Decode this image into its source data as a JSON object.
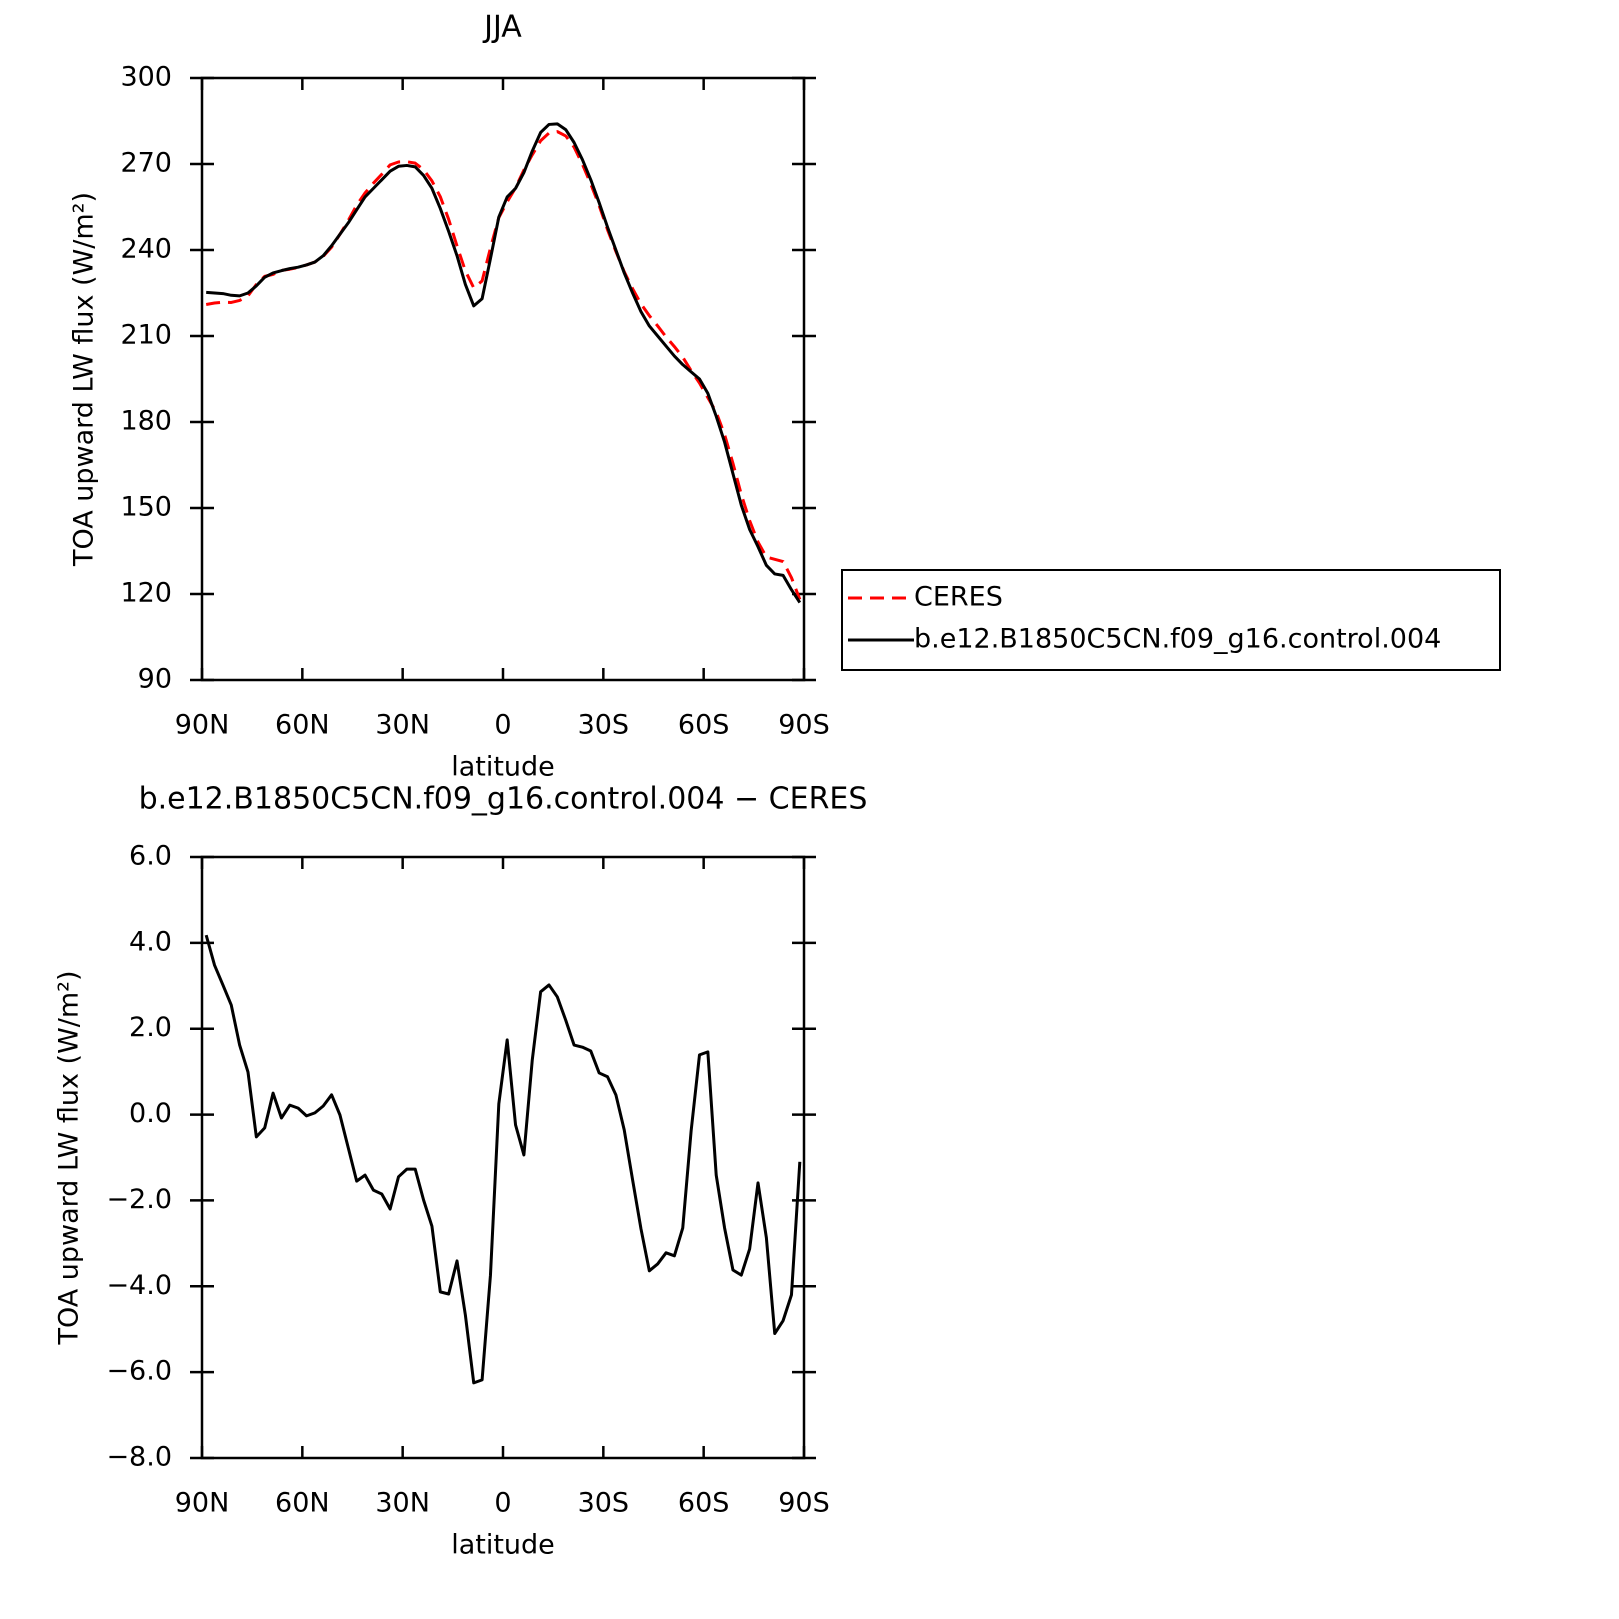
{
  "chart_data": [
    {
      "type": "line",
      "title": "JJA",
      "xlabel": "latitude",
      "ylabel": "TOA upward LW flux (W/m²)",
      "xlim": [
        90,
        -90
      ],
      "xticks": [
        {
          "value": 90,
          "label": "90N"
        },
        {
          "value": 60,
          "label": "60N"
        },
        {
          "value": 30,
          "label": "30N"
        },
        0,
        {
          "value": -30,
          "label": "30S"
        },
        {
          "value": -60,
          "label": "60S"
        },
        {
          "value": -90,
          "label": "90S"
        }
      ],
      "ylim": [
        90,
        300
      ],
      "yticks": [
        90,
        120,
        150,
        180,
        210,
        240,
        270,
        300
      ],
      "legend": "outside-right",
      "x": [
        88.75,
        86.25,
        83.75,
        81.25,
        78.75,
        76.25,
        73.75,
        71.25,
        68.75,
        66.25,
        63.75,
        61.25,
        58.75,
        56.25,
        53.75,
        51.25,
        48.75,
        46.25,
        43.75,
        41.25,
        38.75,
        36.25,
        33.75,
        31.25,
        28.75,
        26.25,
        23.75,
        21.25,
        18.75,
        16.25,
        13.75,
        11.25,
        8.75,
        6.25,
        3.75,
        1.25,
        -1.25,
        -3.75,
        -6.25,
        -8.75,
        -11.25,
        -13.75,
        -16.25,
        -18.75,
        -21.25,
        -23.75,
        -26.25,
        -28.75,
        -31.25,
        -33.75,
        -36.25,
        -38.75,
        -41.25,
        -43.75,
        -46.25,
        -48.75,
        -51.25,
        -53.75,
        -56.25,
        -58.75,
        -61.25,
        -63.75,
        -66.25,
        -68.75,
        -71.25,
        -73.75,
        -76.25,
        -78.75,
        -81.25,
        -83.75,
        -86.25,
        -88.75
      ],
      "series": [
        {
          "name": "CERES",
          "color": "#ff0000",
          "line_style": "dashed",
          "values": [
            221.0,
            221.5,
            221.8,
            221.7,
            222.4,
            224.0,
            228.0,
            230.8,
            231.5,
            232.9,
            233.3,
            233.9,
            234.8,
            235.8,
            237.8,
            241.0,
            245.5,
            250.3,
            255.6,
            259.9,
            263.3,
            266.4,
            269.7,
            270.7,
            270.8,
            270.3,
            268.0,
            264.1,
            258.6,
            250.7,
            241.4,
            232.7,
            226.8,
            229.2,
            240.7,
            251.3,
            256.8,
            261.7,
            267.9,
            273.2,
            278.1,
            280.8,
            281.3,
            279.8,
            275.9,
            269.9,
            263.0,
            255.5,
            247.1,
            239.5,
            232.4,
            226.5,
            221.2,
            217.1,
            213.5,
            209.7,
            206.3,
            202.6,
            197.9,
            193.6,
            188.5,
            183.4,
            175.6,
            165.6,
            154.7,
            145.6,
            138.1,
            132.9,
            132.1,
            131.3,
            125.7,
            118.1
          ]
        },
        {
          "name": "b.e12.B1850C5CN.f09_g16.control.004",
          "color": "#000000",
          "line_style": "solid",
          "values": [
            225.2,
            225.0,
            224.8,
            224.2,
            224.0,
            225.0,
            227.5,
            230.5,
            232.0,
            232.8,
            233.5,
            234.0,
            234.8,
            235.8,
            238.0,
            241.5,
            245.5,
            249.5,
            254,
            258.5,
            261.5,
            264.5,
            267.5,
            269.2,
            269.5,
            269.0,
            266.0,
            261.5,
            254.5,
            246.5,
            238,
            228,
            220.5,
            223,
            237,
            251.5,
            258.5,
            261.5,
            267,
            274.5,
            281,
            283.8,
            284,
            282,
            277.5,
            271.5,
            264.5,
            256.5,
            248,
            240,
            232,
            225,
            218.5,
            213.5,
            210,
            206.5,
            203,
            200,
            197.5,
            195,
            190,
            182,
            173,
            162,
            151,
            142.5,
            136.5,
            130,
            127,
            126.5,
            121.5,
            117
          ]
        }
      ]
    },
    {
      "type": "line",
      "title": "b.e12.B1850C5CN.f09_g16.control.004 − CERES",
      "xlabel": "latitude",
      "ylabel": "TOA upward LW flux (W/m²)",
      "xlim": [
        90,
        -90
      ],
      "xticks": [
        {
          "value": 90,
          "label": "90N"
        },
        {
          "value": 60,
          "label": "60N"
        },
        {
          "value": 30,
          "label": "30N"
        },
        0,
        {
          "value": -30,
          "label": "30S"
        },
        {
          "value": -60,
          "label": "60S"
        },
        {
          "value": -90,
          "label": "90S"
        }
      ],
      "ylim": [
        -8,
        6
      ],
      "yticks": [
        {
          "value": -8,
          "label": "−8.0"
        },
        {
          "value": -6,
          "label": "−6.0"
        },
        {
          "value": -4,
          "label": "−4.0"
        },
        {
          "value": -2,
          "label": "−2.0"
        },
        {
          "value": 0,
          "label": "0.0"
        },
        {
          "value": 2,
          "label": "2.0"
        },
        {
          "value": 4,
          "label": "4.0"
        },
        {
          "value": 6,
          "label": "6.0"
        }
      ],
      "x": [
        88.75,
        86.25,
        83.75,
        81.25,
        78.75,
        76.25,
        73.75,
        71.25,
        68.75,
        66.25,
        63.75,
        61.25,
        58.75,
        56.25,
        53.75,
        51.25,
        48.75,
        46.25,
        43.75,
        41.25,
        38.75,
        36.25,
        33.75,
        31.25,
        28.75,
        26.25,
        23.75,
        21.25,
        18.75,
        16.25,
        13.75,
        11.25,
        8.75,
        6.25,
        3.75,
        1.25,
        -1.25,
        -3.75,
        -6.25,
        -8.75,
        -11.25,
        -13.75,
        -16.25,
        -18.75,
        -21.25,
        -23.75,
        -26.25,
        -28.75,
        -31.25,
        -33.75,
        -36.25,
        -38.75,
        -41.25,
        -43.75,
        -46.25,
        -48.75,
        -51.25,
        -53.75,
        -56.25,
        -58.75,
        -61.25,
        -63.75,
        -66.25,
        -68.75,
        -71.25,
        -73.75,
        -76.25,
        -78.75,
        -81.25,
        -83.75,
        -86.25,
        -88.75
      ],
      "series": [
        {
          "color": "#000000",
          "line_style": "solid",
          "values": [
            4.18,
            3.48,
            3.02,
            2.55,
            1.62,
            0.99,
            -0.52,
            -0.31,
            0.5,
            -0.08,
            0.22,
            0.15,
            -0.03,
            0.04,
            0.2,
            0.46,
            -0.01,
            -0.78,
            -1.55,
            -1.41,
            -1.76,
            -1.85,
            -2.2,
            -1.45,
            -1.27,
            -1.27,
            -1.99,
            -2.6,
            -4.13,
            -4.18,
            -3.41,
            -4.67,
            -6.25,
            -6.18,
            -3.74,
            0.25,
            1.74,
            -0.24,
            -0.94,
            1.27,
            2.86,
            3.02,
            2.74,
            2.2,
            1.62,
            1.57,
            1.48,
            0.97,
            0.88,
            0.46,
            -0.36,
            -1.52,
            -2.66,
            -3.64,
            -3.48,
            -3.22,
            -3.29,
            -2.64,
            -0.38,
            1.39,
            1.46,
            -1.41,
            -2.64,
            -3.62,
            -3.74,
            -3.13,
            -1.59,
            -2.87,
            -5.1,
            -4.8,
            -4.2,
            -1.1
          ]
        }
      ]
    }
  ]
}
